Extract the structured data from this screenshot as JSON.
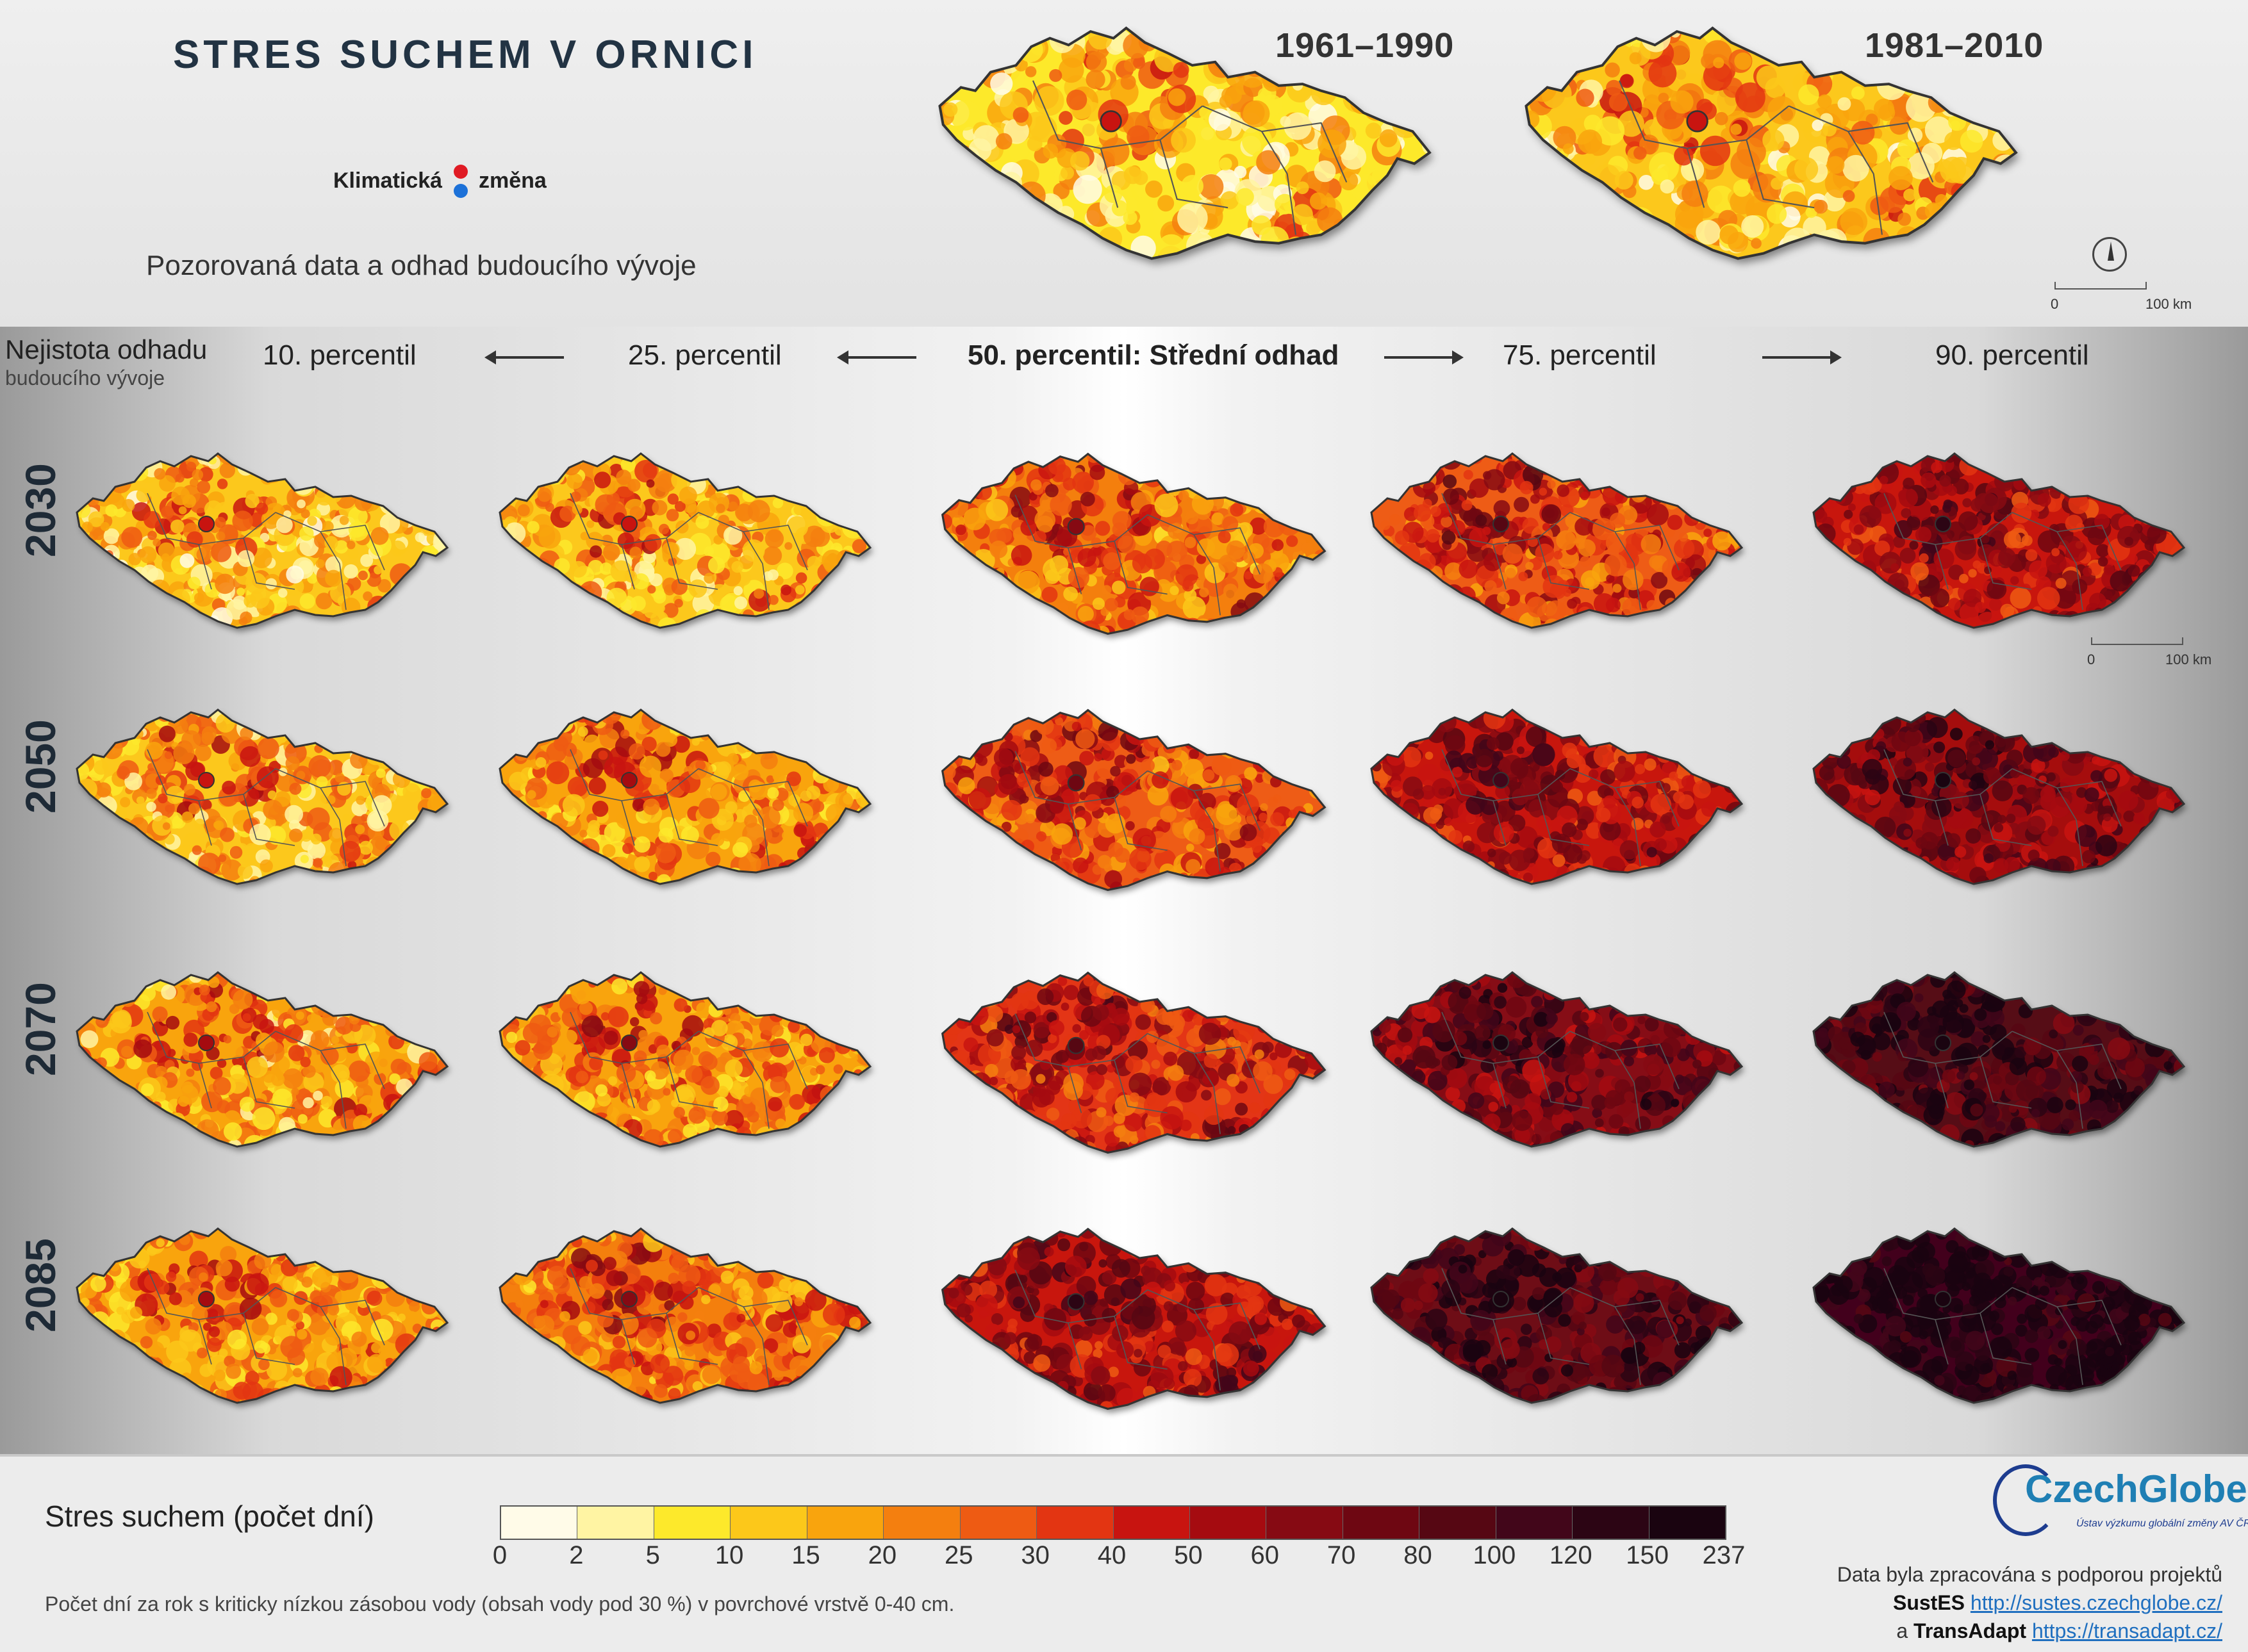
{
  "title": "STRES SUCHEM V ORNICI",
  "logo": {
    "left": "Klimatická",
    "right": "změna"
  },
  "subtitle": "Pozorovaná data a odhad budoucího vývoje",
  "observed": [
    {
      "period": "1961–1990",
      "level": 0.2
    },
    {
      "period": "1981–2010",
      "level": 0.22
    }
  ],
  "scalebar": {
    "zero": "0",
    "hundred": "100 km"
  },
  "uncertainty": {
    "line1": "Nejistota odhadu",
    "line2": "budoucího vývoje"
  },
  "percentiles": [
    {
      "label": "10. percentil"
    },
    {
      "label": "25. percentil"
    },
    {
      "label": "50. percentil: Střední odhad"
    },
    {
      "label": "75. percentil"
    },
    {
      "label": "90. percentil"
    }
  ],
  "years": [
    "2030",
    "2050",
    "2070",
    "2085"
  ],
  "projection_levels": [
    [
      0.22,
      0.26,
      0.36,
      0.46,
      0.58
    ],
    [
      0.26,
      0.3,
      0.42,
      0.56,
      0.68
    ],
    [
      0.28,
      0.33,
      0.5,
      0.7,
      0.84
    ],
    [
      0.3,
      0.36,
      0.58,
      0.8,
      0.96
    ]
  ],
  "legend": {
    "title": "Stres suchem (počet dní)",
    "ticks": [
      "0",
      "2",
      "5",
      "10",
      "15",
      "20",
      "25",
      "30",
      "40",
      "50",
      "60",
      "70",
      "80",
      "100",
      "120",
      "150",
      "237"
    ],
    "colors": [
      "#fffbe8",
      "#fff4a3",
      "#fde92b",
      "#fcc81a",
      "#f9a40d",
      "#f47f0f",
      "#ee5b13",
      "#e33512",
      "#c81410",
      "#a50b10",
      "#860a13",
      "#6e0712",
      "#560713",
      "#42061a",
      "#2c0514",
      "#1a0410"
    ],
    "note": "Počet dní za rok s kriticky nízkou zásobou vody (obsah vody pod 30 %) v povrchové vrstvě 0-40 cm."
  },
  "brand": {
    "name": "CzechGlobe",
    "sub": "Ústav výzkumu globální změny AV ČR, v.v.i."
  },
  "credits": {
    "line1": "Data byla zpracována s podporou projektů",
    "p1_name": "SustES",
    "p1_url": "http://sustes.czechglobe.cz/",
    "p2_prefix": "a",
    "p2_name": "TransAdapt",
    "p2_url": "https://transadapt.cz/"
  }
}
